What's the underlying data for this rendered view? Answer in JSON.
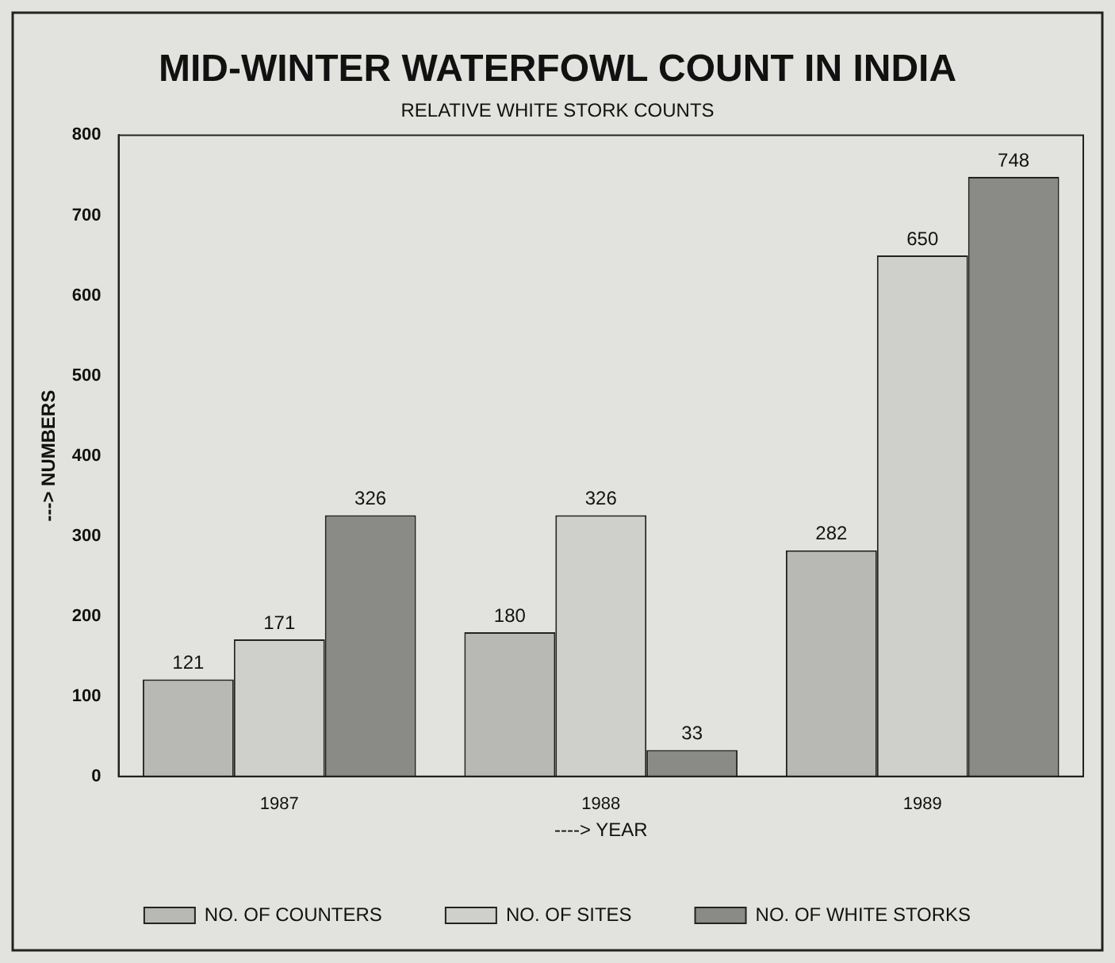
{
  "chart_data": {
    "type": "bar",
    "title": "MID-WINTER WATERFOWL COUNT IN INDIA",
    "subtitle": "RELATIVE WHITE STORK COUNTS",
    "xlabel": "----> YEAR",
    "ylabel": "---> NUMBERS",
    "categories": [
      "1987",
      "1988",
      "1989"
    ],
    "series": [
      {
        "name": "NO. OF COUNTERS",
        "color": "#b8b8b4",
        "values": [
          121,
          180,
          282
        ]
      },
      {
        "name": "NO. OF SITES",
        "color": "#cfcfcb",
        "values": [
          171,
          326,
          650
        ]
      },
      {
        "name": "NO. OF WHITE STORKS",
        "color": "#8a8a86",
        "values": [
          326,
          33,
          748
        ]
      }
    ],
    "ylim": [
      0,
      800
    ],
    "yticks": [
      0,
      100,
      200,
      300,
      400,
      500,
      600,
      700,
      800
    ],
    "grid": false,
    "legend": "bottom",
    "data_labels": true
  }
}
